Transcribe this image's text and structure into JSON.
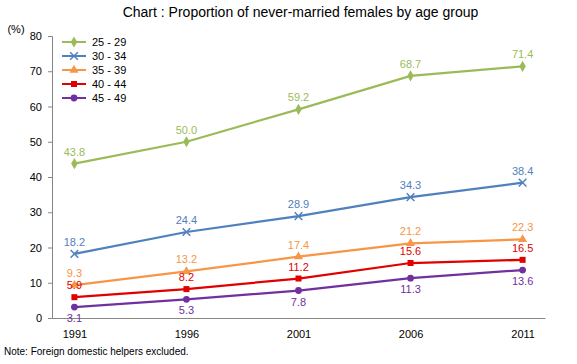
{
  "chart_data": {
    "type": "line",
    "title": "Chart : Proportion of never-married females by age group",
    "y_label": "(%)",
    "note": "Note: Foreign domestic helpers excluded.",
    "categories": [
      "1991",
      "1996",
      "2001",
      "2006",
      "2011"
    ],
    "ylim": [
      0,
      80
    ],
    "yticks": [
      0,
      10,
      20,
      30,
      40,
      50,
      60,
      70,
      80
    ],
    "grid": false,
    "legend": "upper left",
    "data_labels": true,
    "series": [
      {
        "name": "25 - 29",
        "color": "#9bbb59",
        "marker": "diamond",
        "values": [
          43.8,
          50.0,
          59.2,
          68.7,
          71.4
        ],
        "value_labels": [
          "43.8",
          "50.0",
          "59.2",
          "68.7",
          "71.4"
        ]
      },
      {
        "name": "30 - 34",
        "color": "#4f81bd",
        "marker": "x",
        "values": [
          18.2,
          24.4,
          28.9,
          34.3,
          38.4
        ],
        "value_labels": [
          "18.2",
          "24.4",
          "28.9",
          "34.3",
          "38.4"
        ]
      },
      {
        "name": "35 - 39",
        "color": "#f79646",
        "marker": "triangle",
        "values": [
          9.3,
          13.2,
          17.4,
          21.2,
          22.3
        ],
        "value_labels": [
          "9.3",
          "13.2",
          "17.4",
          "21.2",
          "22.3"
        ]
      },
      {
        "name": "40 - 44",
        "color": "#e00000",
        "marker": "square",
        "values": [
          5.9,
          8.2,
          11.2,
          15.6,
          16.5
        ],
        "value_labels": [
          "5.9",
          "8.2",
          "11.2",
          "15.6",
          "16.5"
        ]
      },
      {
        "name": "45 - 49",
        "color": "#7030a0",
        "marker": "circle",
        "values": [
          3.1,
          5.3,
          7.8,
          11.3,
          13.6
        ],
        "value_labels": [
          "3.1",
          "5.3",
          "7.8",
          "11.3",
          "13.6"
        ]
      }
    ]
  }
}
